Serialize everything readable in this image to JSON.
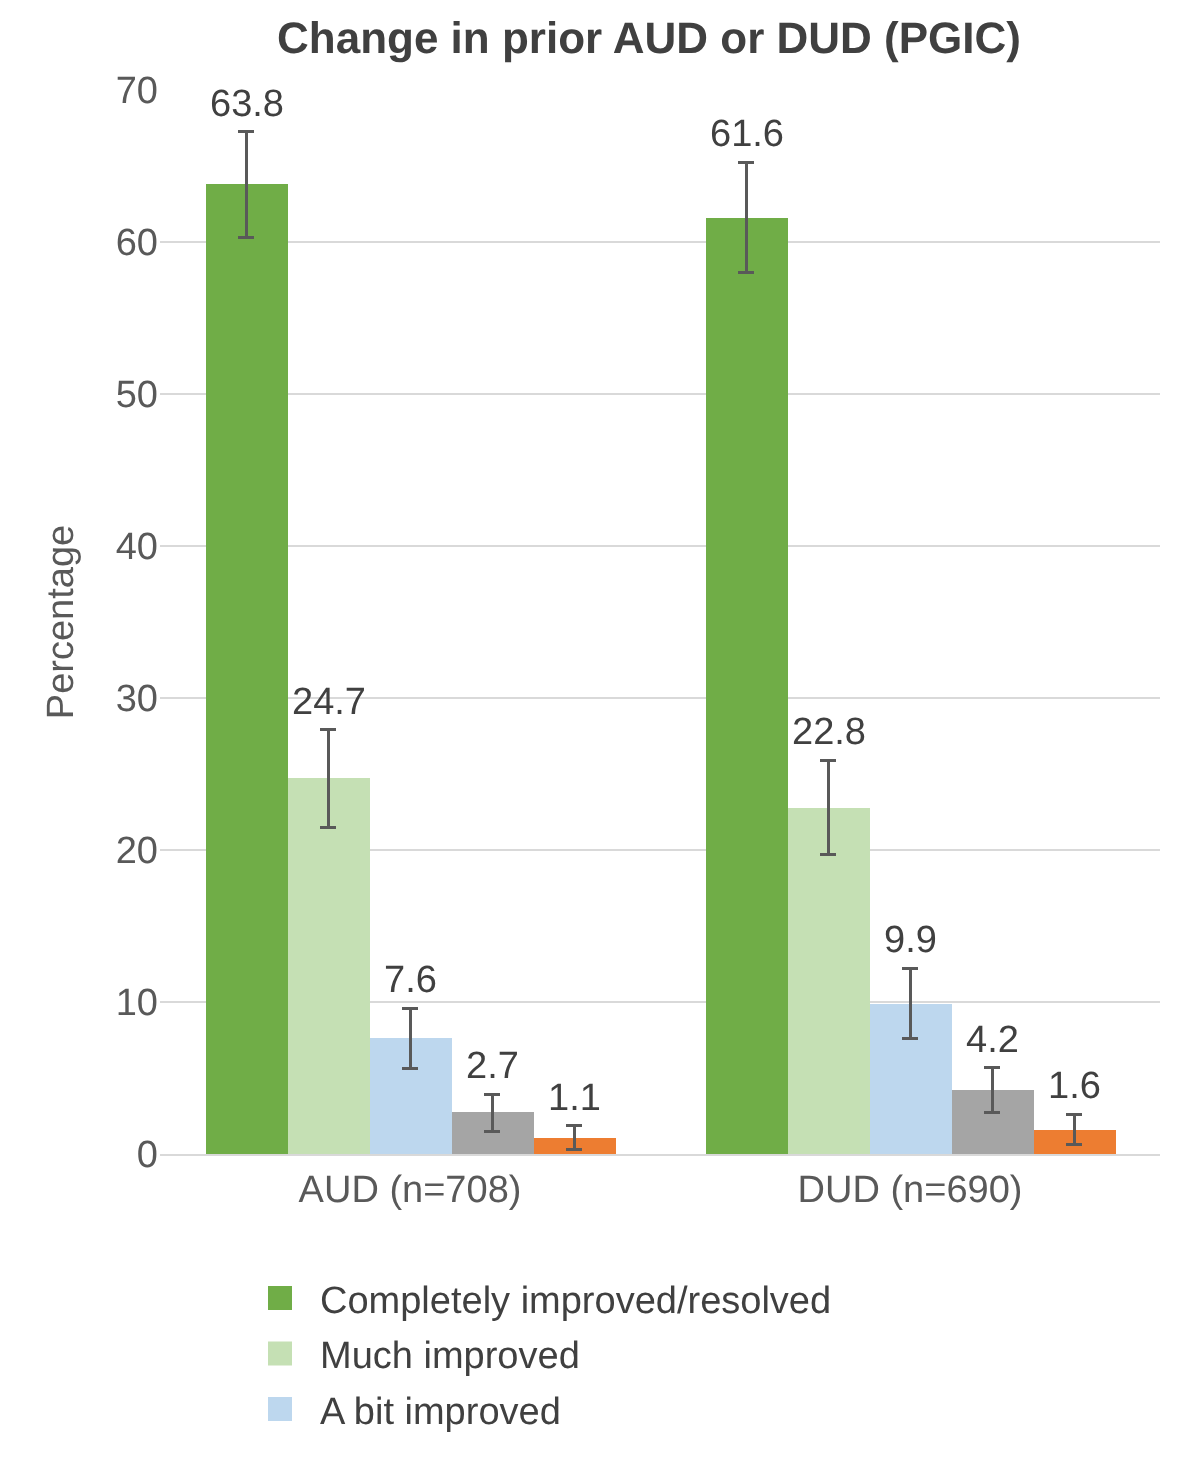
{
  "chart_data": {
    "type": "bar",
    "title": "Change in prior AUD or DUD (PGIC)",
    "ylabel": "Percentage",
    "categories": [
      "AUD (n=708)",
      "DUD (n=690)"
    ],
    "series": [
      {
        "name": "Completely improved/resolved",
        "color": "#70ad47",
        "values": [
          63.8,
          61.6
        ],
        "errors": [
          3.5,
          3.6
        ]
      },
      {
        "name": "Much improved",
        "color": "#c5e0b4",
        "values": [
          24.7,
          22.8
        ],
        "errors": [
          3.2,
          3.1
        ]
      },
      {
        "name": "A bit improved",
        "color": "#bdd7ee",
        "values": [
          7.6,
          9.9
        ],
        "errors": [
          2.0,
          2.3
        ]
      },
      {
        "color": "#a5a5a5",
        "values": [
          2.7,
          4.2
        ],
        "errors": [
          1.2,
          1.5
        ]
      },
      {
        "color": "#ed7d31",
        "values": [
          1.1,
          1.6
        ],
        "errors": [
          0.8,
          1.0
        ]
      }
    ],
    "ylim": [
      0,
      70
    ],
    "yticks": [
      0,
      10,
      20,
      30,
      40,
      50,
      60,
      70
    ],
    "grid": "y",
    "data_labels": true,
    "legend": "bottom"
  }
}
